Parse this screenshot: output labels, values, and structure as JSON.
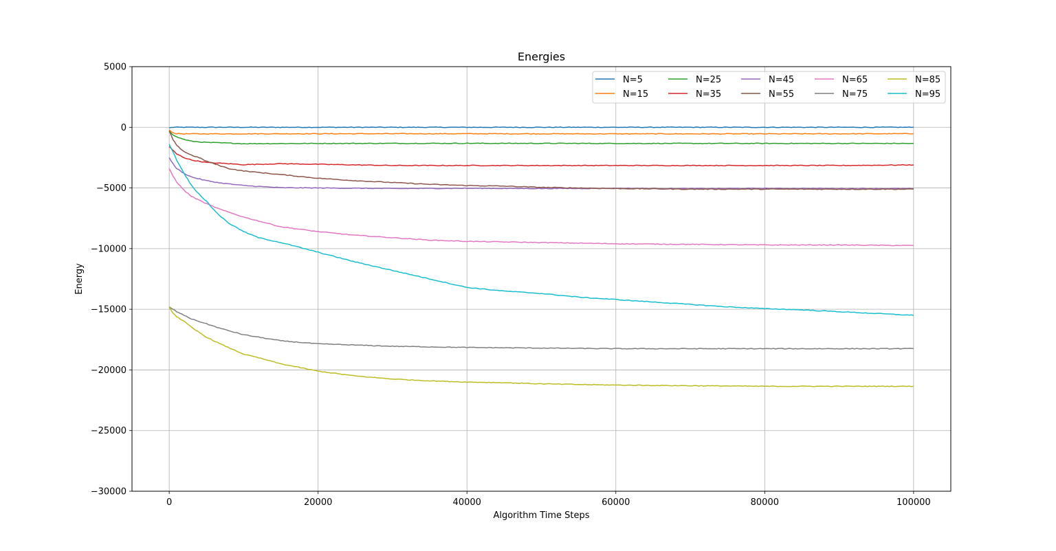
{
  "chart_data": {
    "type": "line",
    "title": "Energies",
    "xlabel": "Algorithm Time Steps",
    "ylabel": "Energy",
    "xlim": [
      -5000,
      105000
    ],
    "ylim": [
      -30000,
      5000
    ],
    "xticks": [
      0,
      20000,
      40000,
      60000,
      80000,
      100000
    ],
    "yticks": [
      5000,
      0,
      -5000,
      -10000,
      -15000,
      -20000,
      -25000,
      -30000
    ],
    "xtick_labels": [
      "0",
      "20000",
      "40000",
      "60000",
      "80000",
      "100000"
    ],
    "ytick_labels": [
      "5000",
      "0",
      "−5000",
      "−10000",
      "−15000",
      "−20000",
      "−25000",
      "−30000"
    ],
    "grid": true,
    "legend_position": "top-right",
    "legend_columns": 5,
    "series": [
      {
        "name": "N=5",
        "color": "#1f77b4",
        "x": [
          0,
          500,
          5000,
          20000,
          40000,
          60000,
          80000,
          100000
        ],
        "y": [
          -50,
          0,
          0,
          0,
          0,
          0,
          0,
          0
        ]
      },
      {
        "name": "N=15",
        "color": "#ff7f0e",
        "x": [
          0,
          500,
          1000,
          2000,
          5000,
          20000,
          40000,
          60000,
          80000,
          100000
        ],
        "y": [
          -200,
          -450,
          -520,
          -540,
          -540,
          -530,
          -530,
          -540,
          -540,
          -530
        ]
      },
      {
        "name": "N=25",
        "color": "#2ca02c",
        "x": [
          0,
          500,
          1000,
          2000,
          3000,
          5000,
          8000,
          10000,
          20000,
          40000,
          60000,
          80000,
          100000
        ],
        "y": [
          -300,
          -600,
          -800,
          -1000,
          -1150,
          -1250,
          -1300,
          -1350,
          -1330,
          -1320,
          -1330,
          -1330,
          -1330
        ]
      },
      {
        "name": "N=35",
        "color": "#d62728",
        "x": [
          0,
          500,
          1000,
          2000,
          3000,
          5000,
          8000,
          10000,
          15000,
          20000,
          30000,
          40000,
          50000,
          60000,
          70000,
          80000,
          90000,
          100000
        ],
        "y": [
          -1600,
          -1900,
          -2200,
          -2500,
          -2700,
          -2900,
          -3000,
          -3080,
          -3000,
          -3050,
          -3150,
          -3150,
          -3150,
          -3150,
          -3150,
          -3150,
          -3150,
          -3100
        ]
      },
      {
        "name": "N=45",
        "color": "#9467bd",
        "x": [
          0,
          500,
          1000,
          2000,
          3000,
          5000,
          7000,
          10000,
          15000,
          20000,
          30000,
          40000,
          50000,
          60000,
          70000,
          80000,
          90000,
          100000
        ],
        "y": [
          -2500,
          -3000,
          -3400,
          -3800,
          -4100,
          -4400,
          -4600,
          -4800,
          -4980,
          -5000,
          -5050,
          -5030,
          -5050,
          -5030,
          -5060,
          -5040,
          -5050,
          -5060
        ]
      },
      {
        "name": "N=55",
        "color": "#8c564b",
        "x": [
          0,
          500,
          1000,
          2000,
          3000,
          4000,
          5000,
          6000,
          7000,
          8000,
          10000,
          15000,
          20000,
          25000,
          30000,
          35000,
          40000,
          45000,
          50000,
          55000,
          60000,
          70000,
          80000,
          90000,
          100000
        ],
        "y": [
          -300,
          -1000,
          -1500,
          -2000,
          -2300,
          -2500,
          -2800,
          -3000,
          -3200,
          -3400,
          -3600,
          -3900,
          -4200,
          -4400,
          -4550,
          -4700,
          -4800,
          -4850,
          -4950,
          -5000,
          -5050,
          -5100,
          -5100,
          -5100,
          -5100
        ]
      },
      {
        "name": "N=65",
        "color": "#e377c2",
        "x": [
          0,
          500,
          1000,
          2000,
          3000,
          5000,
          7000,
          10000,
          15000,
          20000,
          25000,
          30000,
          35000,
          40000,
          50000,
          60000,
          70000,
          80000,
          90000,
          100000
        ],
        "y": [
          -3400,
          -4000,
          -4500,
          -5200,
          -5700,
          -6300,
          -6800,
          -7400,
          -8200,
          -8600,
          -8900,
          -9100,
          -9300,
          -9400,
          -9500,
          -9600,
          -9650,
          -9700,
          -9700,
          -9750
        ]
      },
      {
        "name": "N=75",
        "color": "#7f7f7f",
        "x": [
          0,
          500,
          1000,
          2000,
          3000,
          5000,
          7000,
          10000,
          12000,
          15000,
          20000,
          25000,
          30000,
          40000,
          50000,
          60000,
          70000,
          80000,
          90000,
          100000
        ],
        "y": [
          -14800,
          -15000,
          -15200,
          -15500,
          -15800,
          -16200,
          -16600,
          -17100,
          -17300,
          -17600,
          -17850,
          -17950,
          -18050,
          -18150,
          -18200,
          -18250,
          -18250,
          -18250,
          -18250,
          -18250
        ]
      },
      {
        "name": "N=85",
        "color": "#bcbd22",
        "x": [
          0,
          500,
          1000,
          2000,
          3000,
          5000,
          7000,
          10000,
          12000,
          15000,
          20000,
          25000,
          30000,
          35000,
          40000,
          45000,
          50000,
          60000,
          70000,
          80000,
          90000,
          100000
        ],
        "y": [
          -14800,
          -15300,
          -15600,
          -16000,
          -16500,
          -17300,
          -17900,
          -18700,
          -19000,
          -19500,
          -20100,
          -20500,
          -20750,
          -20900,
          -21000,
          -21050,
          -21150,
          -21250,
          -21300,
          -21350,
          -21350,
          -21350
        ]
      },
      {
        "name": "N=95",
        "color": "#17becf",
        "x": [
          0,
          500,
          1000,
          2000,
          3000,
          4000,
          5000,
          6000,
          7000,
          8000,
          10000,
          12000,
          15000,
          20000,
          25000,
          30000,
          35000,
          40000,
          45000,
          50000,
          55000,
          60000,
          65000,
          70000,
          75000,
          80000,
          85000,
          90000,
          95000,
          100000
        ],
        "y": [
          -1400,
          -2000,
          -2700,
          -3800,
          -4800,
          -5500,
          -6100,
          -6800,
          -7400,
          -7900,
          -8600,
          -9100,
          -9500,
          -10300,
          -11100,
          -11800,
          -12500,
          -13200,
          -13500,
          -13700,
          -14000,
          -14200,
          -14400,
          -14600,
          -14800,
          -14950,
          -15050,
          -15200,
          -15350,
          -15500
        ]
      }
    ]
  }
}
